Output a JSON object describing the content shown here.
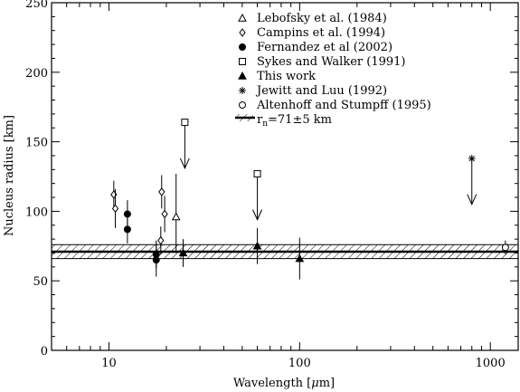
{
  "chart_data": {
    "type": "scatter",
    "title": "",
    "xlabel_prefix": "Wavelength [",
    "xlabel_mu": "μ",
    "xlabel_suffix": "m]",
    "ylabel": "Nucleus radius [km]",
    "xscale": "log",
    "xlim": [
      5,
      1400
    ],
    "ylim": [
      0,
      250
    ],
    "x_ticks": [
      10,
      100,
      1000
    ],
    "x_tick_labels": [
      "10",
      "100",
      "1000"
    ],
    "y_ticks": [
      0,
      50,
      100,
      150,
      200,
      250
    ],
    "y_tick_labels": [
      "0",
      "50",
      "100",
      "150",
      "200",
      "250"
    ],
    "grid": false,
    "legend_position": "top-right",
    "band": {
      "center": 71,
      "error": 5,
      "label_r": "r",
      "label_n": "n",
      "label_rest": "=71±5 km"
    },
    "series": [
      {
        "name": "Lebofsky et al. (1984)",
        "marker": "triangle-open",
        "points": [
          {
            "x": 22.5,
            "y": 96,
            "err_low": 26,
            "err_high": 31
          }
        ]
      },
      {
        "name": "Campins et al. (1994)",
        "marker": "diamond-open",
        "points": [
          {
            "x": 10.6,
            "y": 112,
            "err_low": 10,
            "err_high": 10
          },
          {
            "x": 10.8,
            "y": 102,
            "err_low": 14,
            "err_high": 14
          },
          {
            "x": 18.9,
            "y": 114,
            "err_low": 12,
            "err_high": 12
          },
          {
            "x": 19.6,
            "y": 98,
            "err_low": 13,
            "err_high": 13
          },
          {
            "x": 18.7,
            "y": 79,
            "err_low": 10,
            "err_high": 10
          }
        ]
      },
      {
        "name": "Fernandez et al (2002)",
        "marker": "circle-filled",
        "points": [
          {
            "x": 12.5,
            "y": 98,
            "err_low": 10,
            "err_high": 10
          },
          {
            "x": 12.5,
            "y": 87,
            "err_low": 10,
            "err_high": 10
          },
          {
            "x": 17.7,
            "y": 69,
            "err_low": 10,
            "err_high": 10
          },
          {
            "x": 17.7,
            "y": 65,
            "err_low": 12,
            "err_high": 12
          }
        ]
      },
      {
        "name": "Sykes and Walker (1991)",
        "marker": "square-open",
        "points": [
          {
            "x": 25,
            "y": 164,
            "upper_limit_to": 131
          },
          {
            "x": 60,
            "y": 127,
            "upper_limit_to": 94
          }
        ]
      },
      {
        "name": "This work",
        "marker": "triangle-filled",
        "points": [
          {
            "x": 24.5,
            "y": 70,
            "err_low": 10,
            "err_high": 10
          },
          {
            "x": 60,
            "y": 75,
            "err_low": 13,
            "err_high": 13
          },
          {
            "x": 100,
            "y": 66,
            "err_low": 15,
            "err_high": 15
          }
        ]
      },
      {
        "name": "Jewitt and Luu (1992)",
        "marker": "asterisk",
        "points": [
          {
            "x": 800,
            "y": 138,
            "upper_limit_to": 105
          }
        ]
      },
      {
        "name": "Altenhoff and Stumpff (1995)",
        "marker": "circle-open",
        "points": [
          {
            "x": 1200,
            "y": 74,
            "err_low": 5,
            "err_high": 5
          }
        ]
      }
    ]
  }
}
